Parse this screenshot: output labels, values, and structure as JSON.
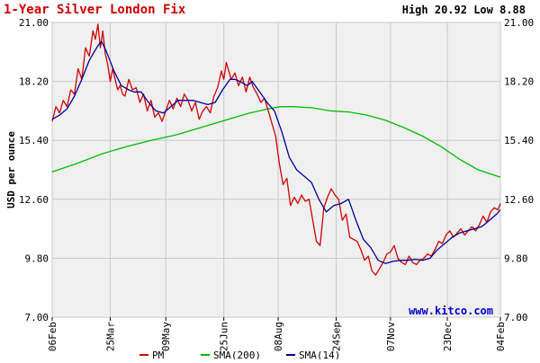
{
  "colors": {
    "title": "#cc0000",
    "plot_background": "#f0f0f0",
    "grid": "#c8c8c8",
    "frame": "#000000",
    "pm": "#d00000",
    "sma200": "#00bb00",
    "sma14": "#000099",
    "watermark": "#0000cc"
  },
  "chart_data": {
    "type": "line",
    "title": "1-Year Silver London Fix",
    "high_low": "High 20.92 Low 8.88",
    "ylabel": "USD per ounce",
    "ylim": [
      7.0,
      21.0
    ],
    "y_ticks": [
      "21.00",
      "18.20",
      "15.40",
      "12.60",
      "9.80",
      "7.00"
    ],
    "grid": true,
    "x_ticks": [
      "06Feb",
      "25Mar",
      "09May",
      "25Jun",
      "08Aug",
      "24Sep",
      "07Nov",
      "23Dec",
      "04Feb"
    ],
    "x_tick_days": [
      0,
      47,
      92,
      139,
      183,
      230,
      274,
      320,
      363
    ],
    "watermark": "www.kitco.com",
    "legend_position": "bottom",
    "series": [
      {
        "name": "PM",
        "color_key": "pm",
        "points": [
          [
            0,
            16.3
          ],
          [
            3,
            17.0
          ],
          [
            6,
            16.7
          ],
          [
            9,
            17.3
          ],
          [
            12,
            17.0
          ],
          [
            15,
            17.8
          ],
          [
            18,
            17.6
          ],
          [
            21,
            18.8
          ],
          [
            24,
            18.3
          ],
          [
            27,
            19.8
          ],
          [
            30,
            19.4
          ],
          [
            33,
            20.6
          ],
          [
            35,
            20.2
          ],
          [
            37,
            20.92
          ],
          [
            39,
            19.8
          ],
          [
            41,
            20.6
          ],
          [
            43,
            19.5
          ],
          [
            45,
            19.0
          ],
          [
            47,
            18.2
          ],
          [
            49,
            18.8
          ],
          [
            51,
            18.3
          ],
          [
            53,
            17.8
          ],
          [
            55,
            18.0
          ],
          [
            57,
            17.6
          ],
          [
            59,
            17.5
          ],
          [
            62,
            18.3
          ],
          [
            65,
            17.8
          ],
          [
            68,
            17.9
          ],
          [
            71,
            17.2
          ],
          [
            74,
            17.6
          ],
          [
            77,
            16.8
          ],
          [
            80,
            17.3
          ],
          [
            83,
            16.5
          ],
          [
            86,
            16.7
          ],
          [
            89,
            16.3
          ],
          [
            92,
            16.8
          ],
          [
            95,
            17.3
          ],
          [
            98,
            16.9
          ],
          [
            101,
            17.4
          ],
          [
            104,
            17.0
          ],
          [
            107,
            17.6
          ],
          [
            110,
            17.3
          ],
          [
            113,
            16.8
          ],
          [
            116,
            17.2
          ],
          [
            119,
            16.4
          ],
          [
            122,
            16.8
          ],
          [
            125,
            17.0
          ],
          [
            128,
            16.7
          ],
          [
            131,
            17.5
          ],
          [
            134,
            17.9
          ],
          [
            137,
            18.7
          ],
          [
            139,
            18.3
          ],
          [
            141,
            19.1
          ],
          [
            143,
            18.7
          ],
          [
            145,
            18.3
          ],
          [
            148,
            18.6
          ],
          [
            151,
            18.0
          ],
          [
            154,
            18.4
          ],
          [
            157,
            17.7
          ],
          [
            160,
            18.4
          ],
          [
            163,
            17.9
          ],
          [
            166,
            17.6
          ],
          [
            169,
            17.2
          ],
          [
            172,
            17.4
          ],
          [
            175,
            16.8
          ],
          [
            178,
            16.2
          ],
          [
            181,
            15.6
          ],
          [
            184,
            14.3
          ],
          [
            187,
            13.3
          ],
          [
            190,
            13.6
          ],
          [
            193,
            12.3
          ],
          [
            196,
            12.7
          ],
          [
            199,
            12.4
          ],
          [
            202,
            12.8
          ],
          [
            205,
            12.5
          ],
          [
            208,
            12.6
          ],
          [
            211,
            11.6
          ],
          [
            214,
            10.6
          ],
          [
            217,
            10.4
          ],
          [
            220,
            12.2
          ],
          [
            223,
            12.7
          ],
          [
            226,
            13.1
          ],
          [
            229,
            12.8
          ],
          [
            232,
            12.6
          ],
          [
            235,
            11.6
          ],
          [
            238,
            11.9
          ],
          [
            241,
            10.8
          ],
          [
            244,
            10.7
          ],
          [
            247,
            10.6
          ],
          [
            250,
            10.2
          ],
          [
            253,
            9.7
          ],
          [
            256,
            9.9
          ],
          [
            259,
            9.2
          ],
          [
            262,
            9.0
          ],
          [
            265,
            9.3
          ],
          [
            268,
            9.6
          ],
          [
            271,
            10.0
          ],
          [
            274,
            10.1
          ],
          [
            277,
            10.4
          ],
          [
            280,
            9.8
          ],
          [
            283,
            9.6
          ],
          [
            286,
            9.5
          ],
          [
            289,
            9.9
          ],
          [
            292,
            9.6
          ],
          [
            295,
            9.5
          ],
          [
            298,
            9.7
          ],
          [
            301,
            9.8
          ],
          [
            304,
            10.0
          ],
          [
            307,
            9.9
          ],
          [
            310,
            10.2
          ],
          [
            313,
            10.6
          ],
          [
            316,
            10.5
          ],
          [
            319,
            10.9
          ],
          [
            322,
            11.1
          ],
          [
            325,
            10.8
          ],
          [
            328,
            11.0
          ],
          [
            331,
            11.2
          ],
          [
            334,
            10.9
          ],
          [
            337,
            11.1
          ],
          [
            340,
            11.3
          ],
          [
            343,
            11.1
          ],
          [
            346,
            11.4
          ],
          [
            349,
            11.8
          ],
          [
            352,
            11.5
          ],
          [
            355,
            12.0
          ],
          [
            358,
            12.2
          ],
          [
            361,
            12.1
          ],
          [
            363,
            12.4
          ]
        ]
      },
      {
        "name": "SMA(200)",
        "color_key": "sma200",
        "points": [
          [
            0,
            13.9
          ],
          [
            20,
            14.3
          ],
          [
            40,
            14.75
          ],
          [
            60,
            15.1
          ],
          [
            80,
            15.4
          ],
          [
            100,
            15.65
          ],
          [
            120,
            16.0
          ],
          [
            140,
            16.35
          ],
          [
            160,
            16.7
          ],
          [
            175,
            16.9
          ],
          [
            185,
            17.0
          ],
          [
            195,
            17.0
          ],
          [
            210,
            16.95
          ],
          [
            225,
            16.8
          ],
          [
            240,
            16.75
          ],
          [
            255,
            16.6
          ],
          [
            270,
            16.35
          ],
          [
            285,
            16.0
          ],
          [
            300,
            15.6
          ],
          [
            315,
            15.1
          ],
          [
            330,
            14.5
          ],
          [
            345,
            14.0
          ],
          [
            363,
            13.65
          ]
        ]
      },
      {
        "name": "SMA(14)",
        "color_key": "sma14",
        "points": [
          [
            0,
            16.4
          ],
          [
            6,
            16.6
          ],
          [
            12,
            16.9
          ],
          [
            18,
            17.5
          ],
          [
            24,
            18.3
          ],
          [
            30,
            19.2
          ],
          [
            37,
            19.9
          ],
          [
            40,
            20.1
          ],
          [
            44,
            19.6
          ],
          [
            50,
            18.7
          ],
          [
            56,
            18.0
          ],
          [
            62,
            17.8
          ],
          [
            66,
            17.7
          ],
          [
            72,
            17.7
          ],
          [
            78,
            17.2
          ],
          [
            84,
            16.8
          ],
          [
            90,
            16.7
          ],
          [
            96,
            17.0
          ],
          [
            102,
            17.3
          ],
          [
            108,
            17.3
          ],
          [
            114,
            17.3
          ],
          [
            120,
            17.2
          ],
          [
            126,
            17.1
          ],
          [
            132,
            17.2
          ],
          [
            138,
            17.8
          ],
          [
            144,
            18.3
          ],
          [
            148,
            18.3
          ],
          [
            152,
            18.2
          ],
          [
            158,
            18.0
          ],
          [
            162,
            18.2
          ],
          [
            168,
            17.7
          ],
          [
            174,
            17.2
          ],
          [
            180,
            16.8
          ],
          [
            186,
            15.8
          ],
          [
            192,
            14.6
          ],
          [
            198,
            14.0
          ],
          [
            204,
            13.7
          ],
          [
            210,
            13.4
          ],
          [
            216,
            12.6
          ],
          [
            222,
            12.0
          ],
          [
            228,
            12.3
          ],
          [
            234,
            12.4
          ],
          [
            240,
            12.6
          ],
          [
            246,
            11.6
          ],
          [
            252,
            10.7
          ],
          [
            258,
            10.3
          ],
          [
            264,
            9.7
          ],
          [
            270,
            9.55
          ],
          [
            276,
            9.65
          ],
          [
            282,
            9.7
          ],
          [
            288,
            9.7
          ],
          [
            294,
            9.75
          ],
          [
            300,
            9.7
          ],
          [
            306,
            9.8
          ],
          [
            312,
            10.2
          ],
          [
            318,
            10.5
          ],
          [
            324,
            10.8
          ],
          [
            330,
            11.0
          ],
          [
            336,
            11.1
          ],
          [
            342,
            11.2
          ],
          [
            348,
            11.3
          ],
          [
            354,
            11.6
          ],
          [
            360,
            11.9
          ],
          [
            363,
            12.1
          ]
        ]
      }
    ]
  }
}
